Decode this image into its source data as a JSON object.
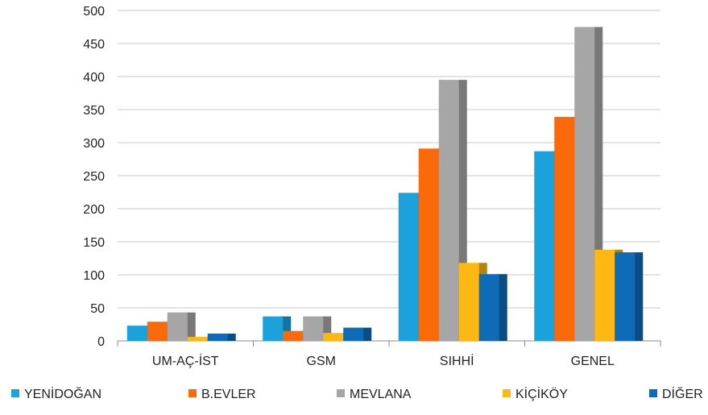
{
  "chart_data": {
    "type": "bar",
    "title": "",
    "xlabel": "",
    "ylabel": "",
    "ylim": [
      0,
      500
    ],
    "ytick_step": 50,
    "grid": true,
    "legend_position": "bottom",
    "categories": [
      "UM-AÇ-İST",
      "GSM",
      "SIHHİ",
      "GENEL"
    ],
    "series": [
      {
        "name": "YENİDOĞAN",
        "color": "#1ba1dc",
        "values": [
          23,
          37,
          224,
          287
        ]
      },
      {
        "name": "B.EVLER",
        "color": "#fa6a0a",
        "values": [
          29,
          15,
          291,
          339
        ]
      },
      {
        "name": "MEVLANA",
        "color": "#a6a6a6",
        "values": [
          43,
          37,
          395,
          475
        ]
      },
      {
        "name": "KİÇİKÖY",
        "color": "#fdb813",
        "values": [
          6,
          12,
          118,
          138
        ]
      },
      {
        "name": "DİĞER",
        "color": "#0e6bb7",
        "values": [
          11,
          20,
          101,
          134
        ]
      }
    ]
  }
}
